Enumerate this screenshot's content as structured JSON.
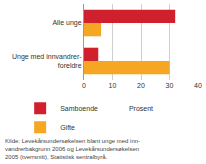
{
  "chart_data": {
    "type": "bar",
    "orientation": "horizontal",
    "categories": [
      "Alle unge",
      "Unge med innvandrer-foreldre"
    ],
    "series": [
      {
        "name": "Samboende",
        "color": "#d0202e",
        "values": [
          32,
          5
        ]
      },
      {
        "name": "Gifte",
        "color": "#f5a623",
        "values": [
          6,
          30
        ]
      }
    ],
    "x_label": "Prosent",
    "xlim": [
      0,
      40
    ],
    "xticks": [
      0,
      10,
      20,
      30,
      40
    ],
    "grid": true,
    "legend": "bottom left",
    "source": [
      "Kilde: Levekårsundersøkelsen blant unge med inn-",
      "vandrerbakgrunn 2006 og Levekårsundersøkelsen",
      "2005 (tverrsnitt), Statistisk sentralbyrå."
    ]
  }
}
